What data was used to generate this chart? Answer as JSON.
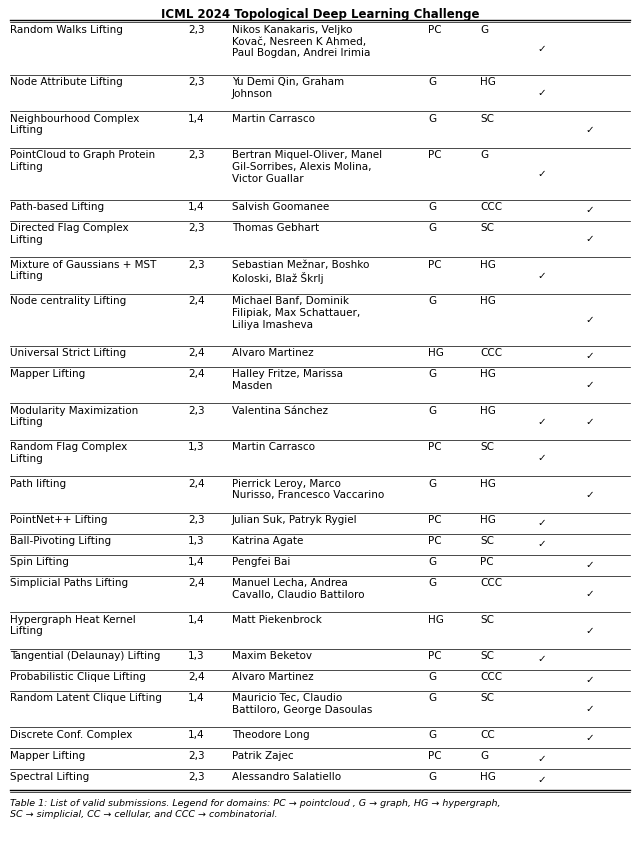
{
  "title": "ICML 2024 Topological Deep Learning Challenge",
  "caption": "Table 1: List of valid submissions. Legend for domains: PC → pointcloud , G → graph, HG → hypergraph,\nSC → simplicial, CC → cellular, and CCC → combinatorial.",
  "rows": [
    [
      "Random Walks Lifting",
      "2,3",
      "Nikos Kanakaris, Veljko\nKovač, Nesreen K Ahmed,\nPaul Bogdan, Andrei Irimia",
      "PC",
      "G",
      "check",
      ""
    ],
    [
      "Node Attribute Lifting",
      "2,3",
      "Yu Demi Qin, Graham\nJohnson",
      "G",
      "HG",
      "check",
      ""
    ],
    [
      "Neighbourhood Complex\nLifting",
      "1,4",
      "Martin Carrasco",
      "G",
      "SC",
      "",
      "check"
    ],
    [
      "PointCloud to Graph Protein\nLifting",
      "2,3",
      "Bertran Miquel-Oliver, Manel\nGil-Sorribes, Alexis Molina,\nVictor Guallar",
      "PC",
      "G",
      "check",
      ""
    ],
    [
      "Path-based Lifting",
      "1,4",
      "Salvish Goomanee",
      "G",
      "CCC",
      "",
      "check"
    ],
    [
      "Directed Flag Complex\nLifting",
      "2,3",
      "Thomas Gebhart",
      "G",
      "SC",
      "",
      "check"
    ],
    [
      "Mixture of Gaussians + MST\nLifting",
      "2,3",
      "Sebastian Mežnar, Boshko\nKoloski, Blaž Škrlj",
      "PC",
      "HG",
      "check",
      ""
    ],
    [
      "Node centrality Lifting",
      "2,4",
      "Michael Banf, Dominik\nFilipiak, Max Schattauer,\nLiliya Imasheva",
      "G",
      "HG",
      "",
      "check"
    ],
    [
      "Universal Strict Lifting",
      "2,4",
      "Alvaro Martinez",
      "HG",
      "CCC",
      "",
      "check"
    ],
    [
      "Mapper Lifting",
      "2,4",
      "Halley Fritze, Marissa\nMasden",
      "G",
      "HG",
      "",
      "check"
    ],
    [
      "Modularity Maximization\nLifting",
      "2,3",
      "Valentina Sánchez",
      "G",
      "HG",
      "check",
      "check"
    ],
    [
      "Random Flag Complex\nLifting",
      "1,3",
      "Martin Carrasco",
      "PC",
      "SC",
      "check",
      ""
    ],
    [
      "Path lifting",
      "2,4",
      "Pierrick Leroy, Marco\nNurisso, Francesco Vaccarino",
      "G",
      "HG",
      "",
      "check"
    ],
    [
      "PointNet++ Lifting",
      "2,3",
      "Julian Suk, Patryk Rygiel",
      "PC",
      "HG",
      "check",
      ""
    ],
    [
      "Ball-Pivoting Lifting",
      "1,3",
      "Katrina Agate",
      "PC",
      "SC",
      "check",
      ""
    ],
    [
      "Spin Lifting",
      "1,4",
      "Pengfei Bai",
      "G",
      "PC",
      "",
      "check"
    ],
    [
      "Simplicial Paths Lifting",
      "2,4",
      "Manuel Lecha, Andrea\nCavallo, Claudio Battiloro",
      "G",
      "CCC",
      "",
      "check"
    ],
    [
      "Hypergraph Heat Kernel\nLifting",
      "1,4",
      "Matt Piekenbrock",
      "HG",
      "SC",
      "",
      "check"
    ],
    [
      "Tangential (Delaunay) Lifting",
      "1,3",
      "Maxim Beketov",
      "PC",
      "SC",
      "check",
      ""
    ],
    [
      "Probabilistic Clique Lifting",
      "2,4",
      "Alvaro Martinez",
      "G",
      "CCC",
      "",
      "check"
    ],
    [
      "Random Latent Clique Lifting",
      "1,4",
      "Mauricio Tec, Claudio\nBattiloro, George Dasoulas",
      "G",
      "SC",
      "",
      "check"
    ],
    [
      "Discrete Conf. Complex",
      "1,4",
      "Theodore Long",
      "G",
      "CC",
      "",
      "check"
    ],
    [
      "Mapper Lifting",
      "2,3",
      "Patrik Zajec",
      "PC",
      "G",
      "check",
      ""
    ],
    [
      "Spectral Lifting",
      "2,3",
      "Alessandro Salatiello",
      "G",
      "HG",
      "check",
      ""
    ]
  ],
  "font_size": 7.5,
  "title_font_size": 8.5
}
